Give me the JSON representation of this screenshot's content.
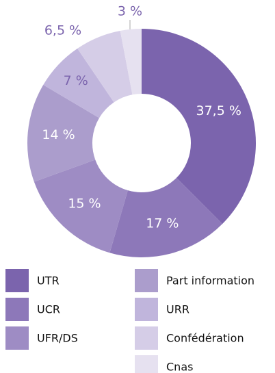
{
  "chart_data": {
    "type": "donut",
    "categories": [
      "UTR",
      "UCR",
      "UFR/DS",
      "Part information",
      "URR",
      "Confédération",
      "Cnas"
    ],
    "values": [
      37.5,
      17,
      15,
      14,
      7,
      6.5,
      3
    ],
    "value_labels": [
      "37,5 %",
      "17 %",
      "15 %",
      "14 %",
      "7 %",
      "6,5 %",
      "3 %"
    ],
    "colors": [
      "#7b64ad",
      "#8d78b9",
      "#9e8cc4",
      "#ab9dcc",
      "#c0b5dc",
      "#d5cde7",
      "#e6e1f0"
    ]
  }
}
